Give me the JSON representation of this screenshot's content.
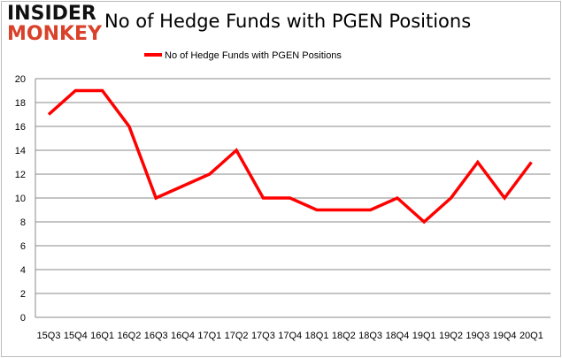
{
  "logo": {
    "line1": "INSIDER",
    "line2": "MONKEY"
  },
  "chart_data": {
    "type": "line",
    "title": "No of Hedge Funds with PGEN Positions",
    "categories": [
      "15Q3",
      "15Q4",
      "16Q1",
      "16Q2",
      "16Q3",
      "16Q4",
      "17Q1",
      "17Q2",
      "17Q3",
      "17Q4",
      "18Q1",
      "18Q2",
      "18Q3",
      "18Q4",
      "19Q1",
      "19Q2",
      "19Q3",
      "19Q4",
      "20Q1"
    ],
    "series": [
      {
        "name": "No of Hedge Funds with PGEN Positions",
        "color": "#ff0000",
        "values": [
          17,
          19,
          19,
          16,
          10,
          11,
          12,
          14,
          10,
          10,
          9,
          9,
          9,
          10,
          8,
          10,
          13,
          10,
          13
        ]
      }
    ],
    "ylim": [
      0,
      20
    ],
    "yticks": [
      0,
      2,
      4,
      6,
      8,
      10,
      12,
      14,
      16,
      18,
      20
    ],
    "grid": true,
    "legend": "top"
  }
}
